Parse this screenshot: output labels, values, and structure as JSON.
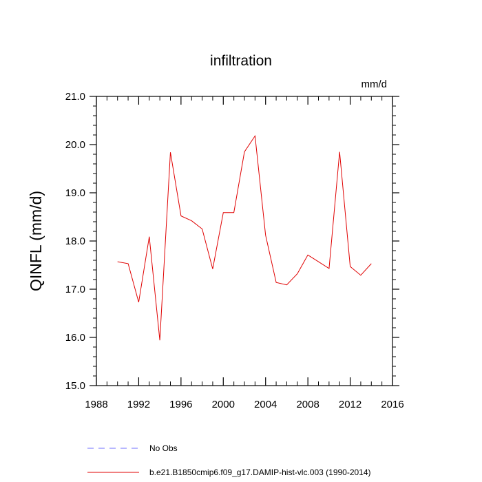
{
  "chart_data": {
    "type": "line",
    "title": "infiltration",
    "units": "mm/d",
    "ylabel": "QINFL  (mm/d)",
    "xlabel": "",
    "xlim": [
      1988,
      2016
    ],
    "ylim": [
      15.0,
      21.0
    ],
    "x_ticks": [
      1988,
      1992,
      1996,
      2000,
      2004,
      2008,
      2012,
      2016
    ],
    "y_ticks": [
      15.0,
      16.0,
      17.0,
      18.0,
      19.0,
      20.0,
      21.0
    ],
    "x_tick_labels": [
      "1988",
      "1992",
      "1996",
      "2000",
      "2004",
      "2008",
      "2012",
      "2016"
    ],
    "y_tick_labels": [
      "15.0",
      "16.0",
      "17.0",
      "18.0",
      "19.0",
      "20.0",
      "21.0"
    ],
    "grid": false,
    "legend_placement": "bottom",
    "legend": [
      {
        "label": "No Obs",
        "color": "#6f6fff",
        "style": "dashed"
      },
      {
        "label": "b.e21.B1850cmip6.f09_g17.DAMIP-hist-vlc.003 (1990-2014)",
        "color": "#e00000",
        "style": "solid"
      }
    ],
    "series": [
      {
        "color": "#e00000",
        "x": [
          1990,
          1991,
          1992,
          1993,
          1994,
          1995,
          1996,
          1997,
          1998,
          1999,
          2000,
          2001,
          2002,
          2003,
          2004,
          2005,
          2006,
          2007,
          2008,
          2009,
          2010,
          2011,
          2012,
          2013,
          2014
        ],
        "y": [
          17.57,
          17.53,
          16.73,
          18.09,
          15.94,
          19.84,
          18.52,
          18.42,
          18.25,
          17.42,
          18.59,
          18.59,
          19.85,
          20.18,
          18.12,
          17.14,
          17.09,
          17.32,
          17.71,
          17.57,
          17.43,
          19.85,
          17.47,
          17.29,
          17.53
        ]
      }
    ]
  }
}
